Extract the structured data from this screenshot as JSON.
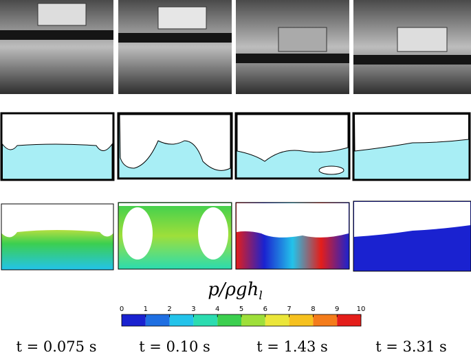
{
  "colorbar": {
    "label": "p/ρgh",
    "label_subscript": "l",
    "ticks": [
      0,
      1,
      2,
      3,
      4,
      5,
      6,
      7,
      8,
      9,
      10
    ],
    "colors": [
      "#1a22d0",
      "#1f6fe2",
      "#23c3ea",
      "#2bdcb0",
      "#3ccf4f",
      "#9edf3a",
      "#ebe63a",
      "#f6c11f",
      "#f47c1b",
      "#e41e1a"
    ]
  },
  "times": [
    "t = 0.075 s",
    "t = 0.10 s",
    "t = 1.43 s",
    "t = 3.31 s"
  ]
}
